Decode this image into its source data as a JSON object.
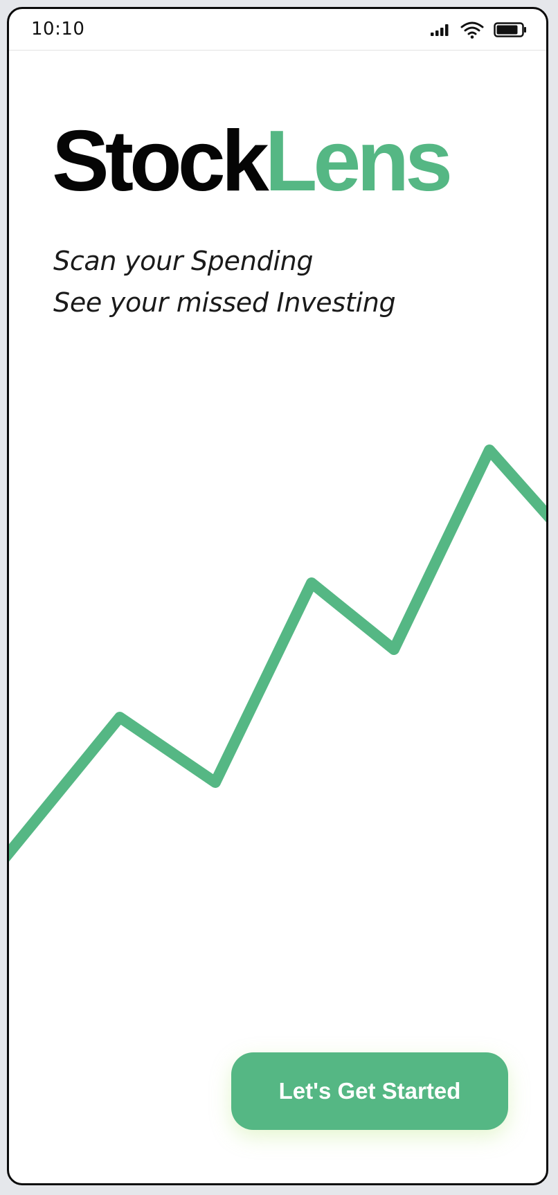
{
  "status_bar": {
    "time": "10:10",
    "icons": [
      "signal-icon",
      "wifi-icon",
      "battery-icon"
    ]
  },
  "brand": {
    "name_part_1": "Stock",
    "name_part_2": "Lens",
    "accent_color": "#55b784",
    "text_color": "#050505"
  },
  "tagline": {
    "line_1": "Scan your Spending",
    "line_2": "See your missed Investing"
  },
  "decoration": {
    "trend_line_icon": "upward-zigzag-line",
    "color": "#55b784"
  },
  "cta": {
    "label": "Let's Get Started",
    "color": "#55b784"
  }
}
